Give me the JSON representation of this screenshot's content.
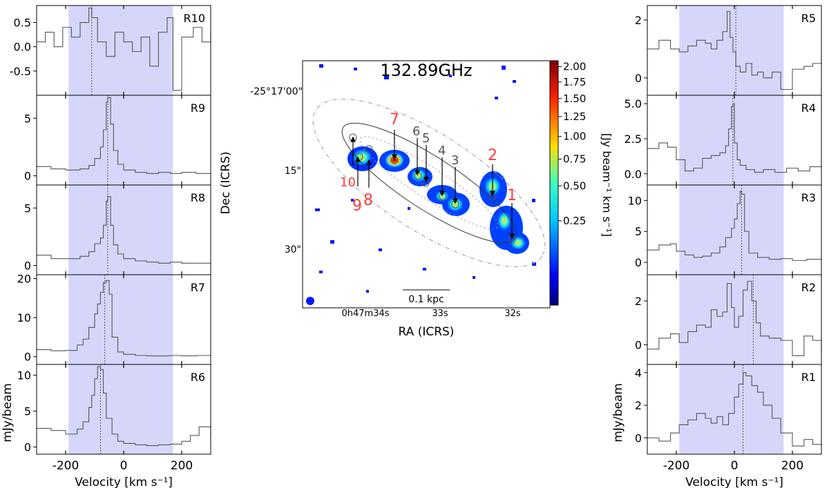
{
  "figure": {
    "center_title": "132.89GHz",
    "center_xlabel": "RA (ICRS)",
    "center_ylabel": "Dec (ICRS)",
    "dec_ticks": [
      "-25°17'00\"",
      "15\"",
      "30\""
    ],
    "ra_ticks": [
      "0h47m34s",
      "33s",
      "32s"
    ],
    "scalebar_label": "0.1 kpc",
    "colorbar_label": "[Jy beam⁻¹ km s⁻¹]",
    "colorbar_ticks": [
      "2.00",
      "1.75",
      "1.50",
      "1.25",
      "1.00",
      "0.75",
      "0.50",
      "0.25"
    ],
    "region_labels": [
      {
        "name": "10",
        "color": "#ff3b3b"
      },
      {
        "name": "9",
        "color": "#ff3b3b"
      },
      {
        "name": "8",
        "color": "#ff3b3b"
      },
      {
        "name": "7",
        "color": "#ff3b3b"
      },
      {
        "name": "6",
        "color": "#555555"
      },
      {
        "name": "5",
        "color": "#555555"
      },
      {
        "name": "4",
        "color": "#555555"
      },
      {
        "name": "3",
        "color": "#555555"
      },
      {
        "name": "2",
        "color": "#ff3b3b"
      },
      {
        "name": "1",
        "color": "#ff3b3b"
      }
    ]
  },
  "chart_data": [
    {
      "type": "line",
      "panel": "R10",
      "xlim": [
        -300,
        300
      ],
      "ylim": [
        -1.0,
        0.85
      ],
      "yticks": [
        "0.5",
        "0.0",
        "-0.5"
      ],
      "ytick_values": [
        0.5,
        0.0,
        -0.5
      ],
      "band": [
        -190,
        170
      ],
      "vline": -110,
      "x": [
        -300,
        -270,
        -240,
        -210,
        -180,
        -150,
        -120,
        -110,
        -90,
        -60,
        -30,
        0,
        30,
        60,
        90,
        120,
        150,
        170,
        200,
        240,
        270,
        300
      ],
      "values": [
        0.1,
        0.3,
        0.0,
        0.4,
        0.2,
        0.5,
        0.8,
        0.6,
        0.1,
        -0.2,
        0.3,
        0.1,
        -0.1,
        0.2,
        -0.4,
        0.3,
        0.6,
        -0.9,
        0.2,
        0.4,
        0.1,
        0.3
      ]
    },
    {
      "type": "line",
      "panel": "R9",
      "xlim": [
        -300,
        300
      ],
      "ylim": [
        -0.8,
        7.0
      ],
      "yticks": [
        "5",
        "0"
      ],
      "ytick_values": [
        5,
        0
      ],
      "band": [
        -190,
        170
      ],
      "vline": -55,
      "x": [
        -300,
        -250,
        -200,
        -150,
        -120,
        -100,
        -80,
        -70,
        -60,
        -55,
        -45,
        -35,
        -20,
        0,
        40,
        80,
        120,
        160,
        200,
        250,
        300
      ],
      "values": [
        0.8,
        0.6,
        0.5,
        0.6,
        0.9,
        1.5,
        2.5,
        4.0,
        6.4,
        6.8,
        4.5,
        2.2,
        1.0,
        0.5,
        0.3,
        0.2,
        0.3,
        0.2,
        0.3,
        0.2,
        0.2
      ]
    },
    {
      "type": "line",
      "panel": "R8",
      "xlim": [
        -300,
        300
      ],
      "ylim": [
        -0.8,
        7.0
      ],
      "yticks": [
        "5",
        "0"
      ],
      "ytick_values": [
        5,
        0
      ],
      "band": [
        -190,
        170
      ],
      "vline": -55,
      "x": [
        -300,
        -250,
        -200,
        -150,
        -120,
        -100,
        -80,
        -70,
        -60,
        -55,
        -45,
        -35,
        -20,
        0,
        40,
        80,
        120,
        160,
        200,
        250,
        300
      ],
      "values": [
        0.9,
        0.6,
        0.6,
        0.8,
        1.2,
        1.9,
        2.4,
        3.5,
        5.6,
        6.0,
        3.5,
        1.8,
        1.0,
        0.6,
        0.4,
        0.3,
        0.2,
        0.3,
        0.2,
        0.2,
        0.2
      ]
    },
    {
      "type": "line",
      "panel": "R7",
      "xlim": [
        -300,
        300
      ],
      "ylim": [
        -2.0,
        21.0
      ],
      "yticks": [
        "20",
        "10",
        "0"
      ],
      "ytick_values": [
        20,
        10,
        0
      ],
      "band": [
        -190,
        170
      ],
      "vline": -65,
      "x": [
        -300,
        -250,
        -200,
        -160,
        -140,
        -120,
        -100,
        -90,
        -80,
        -70,
        -60,
        -50,
        -40,
        -20,
        0,
        40,
        80,
        120,
        160,
        200,
        250,
        300
      ],
      "values": [
        1.8,
        1.5,
        1.6,
        3.0,
        4.5,
        7.5,
        11.0,
        13.5,
        16.5,
        19.0,
        19.5,
        16.0,
        5.0,
        1.2,
        0.6,
        0.3,
        0.2,
        0.2,
        0.3,
        0.2,
        0.3,
        0.2
      ]
    },
    {
      "type": "line",
      "panel": "R6",
      "xlim": [
        -300,
        300
      ],
      "ylim": [
        -1.0,
        11.5
      ],
      "yticks": [
        "10",
        "5",
        "0"
      ],
      "ytick_values": [
        10,
        5,
        0
      ],
      "band": [
        -190,
        170
      ],
      "vline": -80,
      "x": [
        -300,
        -250,
        -200,
        -160,
        -140,
        -120,
        -110,
        -100,
        -90,
        -80,
        -70,
        -60,
        -40,
        -20,
        0,
        40,
        80,
        120,
        160,
        200,
        230,
        260,
        300
      ],
      "values": [
        2.6,
        2.3,
        1.8,
        2.5,
        3.5,
        5.5,
        7.2,
        9.5,
        11.2,
        10.8,
        7.5,
        4.0,
        1.8,
        0.8,
        0.5,
        0.3,
        0.2,
        0.3,
        0.4,
        0.8,
        1.6,
        2.8,
        1.5
      ]
    },
    {
      "type": "line",
      "panel": "R5",
      "xlim": [
        -300,
        300
      ],
      "ylim": [
        -0.6,
        2.5
      ],
      "yticks": [
        "2",
        "0"
      ],
      "ytick_values": [
        2,
        0
      ],
      "band": [
        -190,
        170
      ],
      "vline": 5,
      "x": [
        -300,
        -260,
        -220,
        -190,
        -160,
        -130,
        -100,
        -80,
        -60,
        -40,
        -25,
        -15,
        -5,
        5,
        20,
        40,
        60,
        80,
        100,
        130,
        160,
        200,
        240,
        270,
        300
      ],
      "values": [
        1.0,
        1.3,
        1.0,
        0.9,
        1.1,
        1.3,
        1.2,
        1.0,
        1.3,
        1.6,
        2.3,
        1.4,
        0.9,
        0.4,
        0.2,
        0.5,
        0.1,
        0.2,
        0.0,
        0.2,
        -0.4,
        0.3,
        0.4,
        0.5,
        0.6
      ]
    },
    {
      "type": "line",
      "panel": "R4",
      "xlim": [
        -300,
        300
      ],
      "ylim": [
        -0.8,
        5.6
      ],
      "yticks": [
        "5.0",
        "2.5",
        "0.0"
      ],
      "ytick_values": [
        5,
        2.5,
        0
      ],
      "band": [
        -190,
        170
      ],
      "vline": -5,
      "x": [
        -300,
        -260,
        -230,
        -200,
        -170,
        -140,
        -110,
        -80,
        -50,
        -30,
        -20,
        -10,
        -5,
        0,
        10,
        20,
        40,
        70,
        100,
        140,
        180,
        220,
        260,
        300
      ],
      "values": [
        1.8,
        2.2,
        1.9,
        1.0,
        0.2,
        0.4,
        1.1,
        1.3,
        1.5,
        2.0,
        3.2,
        4.8,
        5.0,
        2.2,
        1.0,
        0.6,
        0.3,
        0.1,
        0.3,
        0.1,
        0.4,
        0.2,
        0.5,
        0.6
      ]
    },
    {
      "type": "line",
      "panel": "R3",
      "xlim": [
        -300,
        300
      ],
      "ylim": [
        -2.0,
        12.5
      ],
      "yticks": [
        "10",
        "5",
        "0"
      ],
      "ytick_values": [
        10,
        5,
        0
      ],
      "band": [
        -190,
        170
      ],
      "vline": 25,
      "x": [
        -300,
        -260,
        -220,
        -200,
        -170,
        -140,
        -110,
        -80,
        -50,
        -30,
        -10,
        0,
        10,
        20,
        25,
        35,
        50,
        80,
        120,
        160,
        200,
        250,
        300
      ],
      "values": [
        2.0,
        2.8,
        3.0,
        1.8,
        1.2,
        0.8,
        1.0,
        1.5,
        2.5,
        4.0,
        5.5,
        7.0,
        9.5,
        11.5,
        11.0,
        5.0,
        1.5,
        0.8,
        0.5,
        0.6,
        0.3,
        0.5,
        0.3
      ]
    },
    {
      "type": "line",
      "panel": "R2",
      "xlim": [
        -300,
        300
      ],
      "ylim": [
        -0.9,
        3.2
      ],
      "yticks": [
        "2",
        "0"
      ],
      "ytick_values": [
        2,
        0
      ],
      "band": [
        -190,
        170
      ],
      "vline": 65,
      "x": [
        -300,
        -260,
        -220,
        -190,
        -160,
        -130,
        -100,
        -80,
        -60,
        -40,
        -25,
        -10,
        0,
        15,
        30,
        45,
        60,
        75,
        90,
        120,
        160,
        200,
        240,
        270,
        300
      ],
      "values": [
        -0.2,
        0.3,
        0.5,
        0.1,
        0.6,
        0.9,
        0.8,
        1.6,
        1.3,
        1.5,
        2.8,
        1.7,
        0.8,
        1.3,
        2.5,
        2.9,
        2.0,
        1.0,
        0.4,
        0.3,
        0.2,
        -0.5,
        0.4,
        0.2,
        -0.3
      ]
    },
    {
      "type": "line",
      "panel": "R1",
      "xlim": [
        -300,
        300
      ],
      "ylim": [
        -1.0,
        4.5
      ],
      "yticks": [
        "4",
        "2",
        "0"
      ],
      "ytick_values": [
        4,
        2,
        0
      ],
      "band": [
        -190,
        170
      ],
      "vline": 30,
      "x": [
        -300,
        -260,
        -220,
        -190,
        -160,
        -130,
        -100,
        -80,
        -60,
        -40,
        -20,
        0,
        15,
        30,
        40,
        60,
        80,
        100,
        130,
        160,
        200,
        240,
        270,
        300
      ],
      "values": [
        0.0,
        -0.2,
        0.3,
        0.8,
        1.1,
        1.5,
        1.2,
        0.9,
        1.3,
        0.8,
        1.5,
        2.5,
        3.3,
        4.0,
        3.8,
        3.2,
        2.8,
        2.0,
        1.2,
        0.3,
        -0.5,
        -0.1,
        -0.4,
        -0.2
      ]
    }
  ],
  "panel_axes": {
    "xticks": [
      "-200",
      "0",
      "200"
    ],
    "xtick_values": [
      -200,
      0,
      200
    ],
    "xlabel": "Velocity [km s⁻¹]",
    "ylabel": "mJy/beam",
    "band_color": "#d6d6fa",
    "line_color": "#555555"
  }
}
